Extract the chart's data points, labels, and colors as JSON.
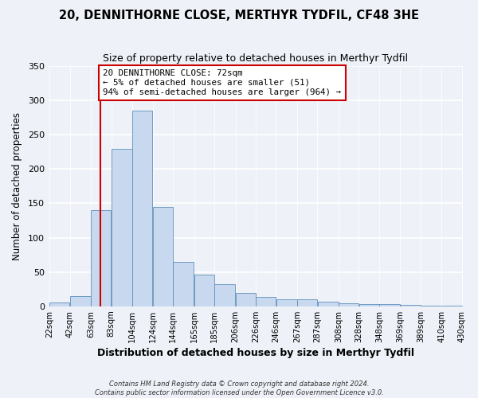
{
  "title": "20, DENNITHORNE CLOSE, MERTHYR TYDFIL, CF48 3HE",
  "subtitle": "Size of property relative to detached houses in Merthyr Tydfil",
  "xlabel": "Distribution of detached houses by size in Merthyr Tydfil",
  "ylabel": "Number of detached properties",
  "bin_labels": [
    "22sqm",
    "42sqm",
    "63sqm",
    "83sqm",
    "104sqm",
    "124sqm",
    "144sqm",
    "165sqm",
    "185sqm",
    "206sqm",
    "226sqm",
    "246sqm",
    "267sqm",
    "287sqm",
    "308sqm",
    "328sqm",
    "348sqm",
    "369sqm",
    "389sqm",
    "410sqm",
    "430sqm"
  ],
  "bar_heights": [
    6,
    15,
    140,
    230,
    285,
    145,
    65,
    46,
    32,
    20,
    14,
    10,
    10,
    7,
    4,
    3,
    3,
    2,
    1,
    1
  ],
  "bar_color": "#c8d8ee",
  "bar_edge_color": "#6090bb",
  "vline_color": "#cc0000",
  "annotation_title": "20 DENNITHORNE CLOSE: 72sqm",
  "annotation_line1": "← 5% of detached houses are smaller (51)",
  "annotation_line2": "94% of semi-detached houses are larger (964) →",
  "annotation_box_color": "#cc0000",
  "ylim": [
    0,
    350
  ],
  "yticks": [
    0,
    50,
    100,
    150,
    200,
    250,
    300,
    350
  ],
  "footer1": "Contains HM Land Registry data © Crown copyright and database right 2024.",
  "footer2": "Contains public sector information licensed under the Open Government Licence v3.0.",
  "property_sqm": 72,
  "background_color": "#eef2f8"
}
